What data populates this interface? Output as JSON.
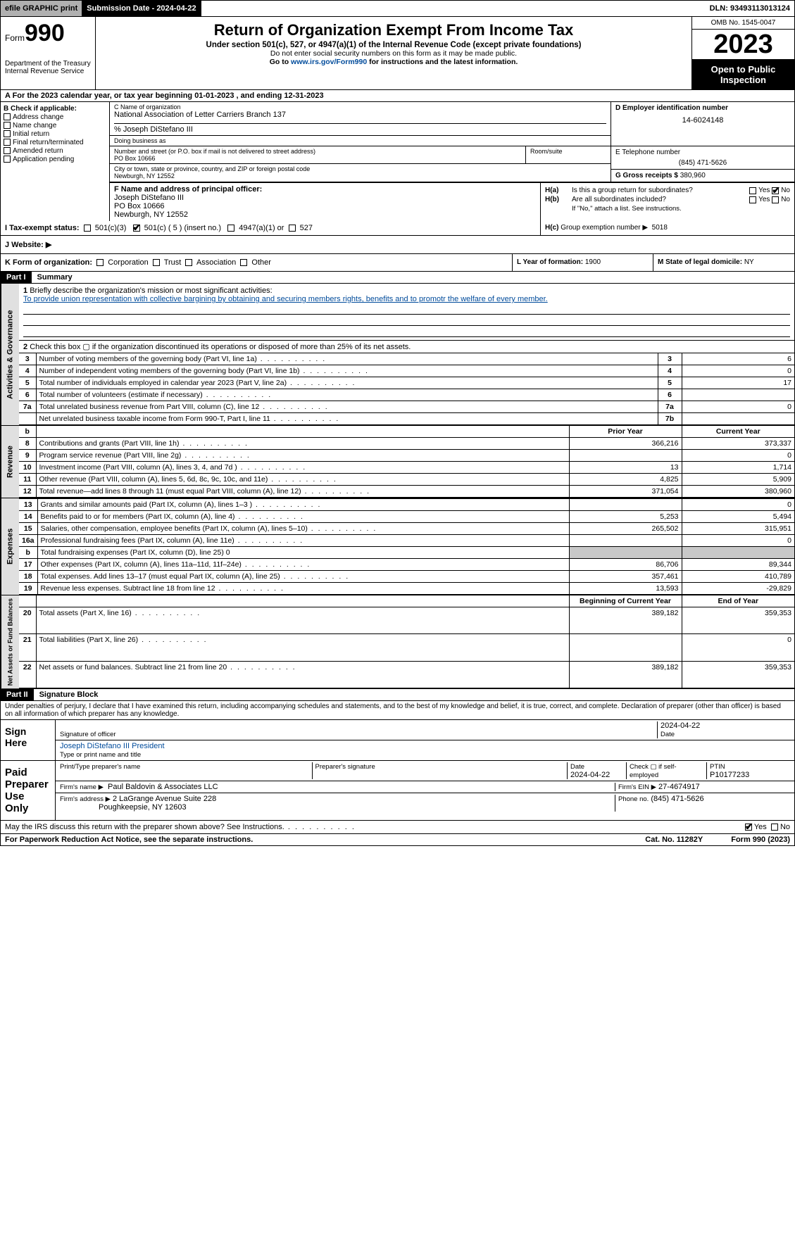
{
  "topbar": {
    "efile": "efile GRAPHIC print",
    "submission": "Submission Date - 2024-04-22",
    "dln": "DLN: 93493113013124"
  },
  "header": {
    "form_label": "Form",
    "form_no": "990",
    "dept": "Department of the Treasury Internal Revenue Service",
    "title": "Return of Organization Exempt From Income Tax",
    "sub1": "Under section 501(c), 527, or 4947(a)(1) of the Internal Revenue Code (except private foundations)",
    "sub2": "Do not enter social security numbers on this form as it may be made public.",
    "sub3_pre": "Go to ",
    "sub3_link": "www.irs.gov/Form990",
    "sub3_post": " for instructions and the latest information.",
    "omb": "OMB No. 1545-0047",
    "year": "2023",
    "otp": "Open to Public Inspection"
  },
  "lineA": "A  For the 2023 calendar year, or tax year beginning 01-01-2023   , and ending 12-31-2023",
  "B": {
    "label": "B Check if applicable:",
    "items": [
      "Address change",
      "Name change",
      "Initial return",
      "Final return/terminated",
      "Amended return",
      "Application pending"
    ]
  },
  "C": {
    "name_lbl": "C Name of organization",
    "name": "National Association of Letter Carriers Branch 137",
    "care_of": "% Joseph DiStefano III",
    "dba_lbl": "Doing business as",
    "street_lbl": "Number and street (or P.O. box if mail is not delivered to street address)",
    "room_lbl": "Room/suite",
    "street": "PO Box 10666",
    "city_lbl": "City or town, state or province, country, and ZIP or foreign postal code",
    "city": "Newburgh, NY  12552"
  },
  "D": {
    "lbl": "D Employer identification number",
    "val": "14-6024148"
  },
  "E": {
    "lbl": "E Telephone number",
    "val": "(845) 471-5626"
  },
  "G": {
    "lbl": "G Gross receipts $",
    "val": "380,960"
  },
  "F": {
    "lbl": "F  Name and address of principal officer:",
    "name": "Joseph DiStefano III",
    "addr1": "PO Box 10666",
    "addr2": "Newburgh, NY  12552"
  },
  "H": {
    "a_lbl": "H(a)",
    "a_txt": "Is this a group return for subordinates?",
    "a_yes": "Yes",
    "a_no": "No",
    "b_lbl": "H(b)",
    "b_txt": "Are all subordinates included?",
    "b_note": "If \"No,\" attach a list. See instructions.",
    "c_lbl": "H(c)",
    "c_txt": "Group exemption number ▶",
    "c_val": "5018"
  },
  "I": {
    "lbl": "I   Tax-exempt status:",
    "o1": "501(c)(3)",
    "o2": "501(c) ( 5 ) (insert no.)",
    "o3": "4947(a)(1) or",
    "o4": "527"
  },
  "J": {
    "lbl": "J   Website: ▶"
  },
  "K": {
    "lbl": "K Form of organization:",
    "o1": "Corporation",
    "o2": "Trust",
    "o3": "Association",
    "o4": "Other"
  },
  "L": {
    "lbl": "L Year of formation:",
    "val": "1900"
  },
  "M": {
    "lbl": "M State of legal domicile:",
    "val": "NY"
  },
  "partI": {
    "hdr": "Part I",
    "title": "Summary"
  },
  "summary": {
    "l1_lbl": "Briefly describe the organization's mission or most significant activities:",
    "l1_txt": "To provide union representation with collective bargining by obtaining and securing members rights, benefits and to promotr the welfare of every member.",
    "l2": "Check this box ▢ if the organization discontinued its operations or disposed of more than 25% of its net assets.",
    "rows_ag": [
      {
        "n": "3",
        "t": "Number of voting members of the governing body (Part VI, line 1a)",
        "ln": "3",
        "v": "6"
      },
      {
        "n": "4",
        "t": "Number of independent voting members of the governing body (Part VI, line 1b)",
        "ln": "4",
        "v": "0"
      },
      {
        "n": "5",
        "t": "Total number of individuals employed in calendar year 2023 (Part V, line 2a)",
        "ln": "5",
        "v": "17"
      },
      {
        "n": "6",
        "t": "Total number of volunteers (estimate if necessary)",
        "ln": "6",
        "v": ""
      },
      {
        "n": "7a",
        "t": "Total unrelated business revenue from Part VIII, column (C), line 12",
        "ln": "7a",
        "v": "0"
      },
      {
        "n": "",
        "t": "Net unrelated business taxable income from Form 990-T, Part I, line 11",
        "ln": "7b",
        "v": ""
      }
    ],
    "hdr_prior": "Prior Year",
    "hdr_curr": "Current Year",
    "rows_rev": [
      {
        "n": "8",
        "t": "Contributions and grants (Part VIII, line 1h)",
        "p": "366,216",
        "c": "373,337"
      },
      {
        "n": "9",
        "t": "Program service revenue (Part VIII, line 2g)",
        "p": "",
        "c": "0"
      },
      {
        "n": "10",
        "t": "Investment income (Part VIII, column (A), lines 3, 4, and 7d )",
        "p": "13",
        "c": "1,714"
      },
      {
        "n": "11",
        "t": "Other revenue (Part VIII, column (A), lines 5, 6d, 8c, 9c, 10c, and 11e)",
        "p": "4,825",
        "c": "5,909"
      },
      {
        "n": "12",
        "t": "Total revenue—add lines 8 through 11 (must equal Part VIII, column (A), line 12)",
        "p": "371,054",
        "c": "380,960"
      }
    ],
    "rows_exp": [
      {
        "n": "13",
        "t": "Grants and similar amounts paid (Part IX, column (A), lines 1–3 )",
        "p": "",
        "c": "0"
      },
      {
        "n": "14",
        "t": "Benefits paid to or for members (Part IX, column (A), line 4)",
        "p": "5,253",
        "c": "5,494"
      },
      {
        "n": "15",
        "t": "Salaries, other compensation, employee benefits (Part IX, column (A), lines 5–10)",
        "p": "265,502",
        "c": "315,951"
      },
      {
        "n": "16a",
        "t": "Professional fundraising fees (Part IX, column (A), line 11e)",
        "p": "",
        "c": "0"
      },
      {
        "n": "b",
        "t": "Total fundraising expenses (Part IX, column (D), line 25) 0",
        "shade": true
      },
      {
        "n": "17",
        "t": "Other expenses (Part IX, column (A), lines 11a–11d, 11f–24e)",
        "p": "86,706",
        "c": "89,344"
      },
      {
        "n": "18",
        "t": "Total expenses. Add lines 13–17 (must equal Part IX, column (A), line 25)",
        "p": "357,461",
        "c": "410,789"
      },
      {
        "n": "19",
        "t": "Revenue less expenses. Subtract line 18 from line 12",
        "p": "13,593",
        "c": "-29,829"
      }
    ],
    "hdr_boy": "Beginning of Current Year",
    "hdr_eoy": "End of Year",
    "rows_na": [
      {
        "n": "20",
        "t": "Total assets (Part X, line 16)",
        "p": "389,182",
        "c": "359,353"
      },
      {
        "n": "21",
        "t": "Total liabilities (Part X, line 26)",
        "p": "",
        "c": "0"
      },
      {
        "n": "22",
        "t": "Net assets or fund balances. Subtract line 21 from line 20",
        "p": "389,182",
        "c": "359,353"
      }
    ],
    "side_ag": "Activities & Governance",
    "side_rev": "Revenue",
    "side_exp": "Expenses",
    "side_na": "Net Assets or Fund Balances"
  },
  "partII": {
    "hdr": "Part II",
    "title": "Signature Block",
    "decl": "Under penalties of perjury, I declare that I have examined this return, including accompanying schedules and statements, and to the best of my knowledge and belief, it is true, correct, and complete. Declaration of preparer (other than officer) is based on all information of which preparer has any knowledge."
  },
  "sign": {
    "here": "Sign Here",
    "sig_lbl": "Signature of officer",
    "date_lbl": "Date",
    "date": "2024-04-22",
    "name": "Joseph DiStefano III President",
    "type_lbl": "Type or print name and title",
    "paid": "Paid Preparer Use Only",
    "prep_name_lbl": "Print/Type preparer's name",
    "prep_sig_lbl": "Preparer's signature",
    "prep_date_lbl": "Date",
    "prep_date": "2024-04-22",
    "self_lbl": "Check ▢ if self-employed",
    "ptin_lbl": "PTIN",
    "ptin": "P10177233",
    "firm_name_lbl": "Firm's name ▶",
    "firm_name": "Paul Baldovin & Associates LLC",
    "firm_ein_lbl": "Firm's EIN ▶",
    "firm_ein": "27-4674917",
    "firm_addr_lbl": "Firm's address ▶",
    "firm_addr1": "2 LaGrange Avenue Suite 228",
    "firm_addr2": "Poughkeepsie, NY  12603",
    "phone_lbl": "Phone no.",
    "phone": "(845) 471-5626",
    "discuss": "May the IRS discuss this return with the preparer shown above? See Instructions.",
    "d_yes": "Yes",
    "d_no": "No"
  },
  "footer": {
    "pra": "For Paperwork Reduction Act Notice, see the separate instructions.",
    "cat": "Cat. No. 11282Y",
    "form": "Form 990 (2023)"
  }
}
